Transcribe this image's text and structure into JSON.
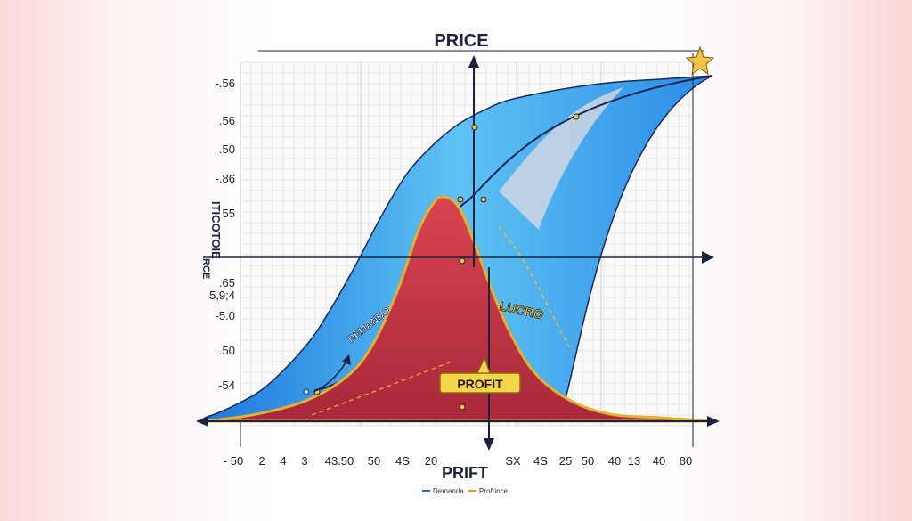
{
  "chart_data": {
    "type": "area",
    "title": "PRICE",
    "xlabel": "PRIFT",
    "ylabel_lines": [
      "RCE",
      "ITICOTOIE"
    ],
    "x_tick_labels": [
      "- 50",
      "2",
      "4",
      "3",
      "43.50",
      "50",
      "4S",
      "20",
      "SX",
      "4S",
      "25",
      "50",
      "40",
      "13",
      "40",
      "80"
    ],
    "y_tick_labels": [
      "-.56",
      ".56",
      ".50",
      "-.86",
      "55",
      ".65",
      "5,9;4",
      "-5.0",
      ".50",
      "-54"
    ],
    "x_range": [
      0,
      1
    ],
    "y_range": [
      0,
      1
    ],
    "grid": true,
    "legend_position": "bottom-center",
    "series": [
      {
        "name": "Demanda",
        "color": "#2b8be6",
        "x": [
          0.0,
          0.05,
          0.12,
          0.2,
          0.25,
          0.3,
          0.35,
          0.4,
          0.45,
          0.5,
          0.55,
          0.6,
          0.7,
          0.8,
          0.9,
          1.0
        ],
        "y": [
          0.01,
          0.04,
          0.1,
          0.22,
          0.33,
          0.46,
          0.6,
          0.72,
          0.8,
          0.86,
          0.9,
          0.93,
          0.96,
          0.98,
          0.99,
          1.0
        ]
      },
      {
        "name": "Profrince",
        "color": "#cf3c4a",
        "x": [
          0.0,
          0.1,
          0.2,
          0.28,
          0.33,
          0.38,
          0.42,
          0.45,
          0.47,
          0.5,
          0.53,
          0.56,
          0.6,
          0.65,
          0.72,
          0.8,
          0.9,
          1.0
        ],
        "y": [
          0.0,
          0.02,
          0.06,
          0.13,
          0.22,
          0.38,
          0.55,
          0.63,
          0.65,
          0.62,
          0.52,
          0.4,
          0.26,
          0.14,
          0.06,
          0.02,
          0.01,
          0.0
        ]
      }
    ],
    "annotations": [
      "DEMANDO",
      "LUCRO",
      "PROFIT"
    ],
    "legend": [
      {
        "label": "Demanda",
        "color": "#2b6cc4"
      },
      {
        "label": "Profrince",
        "color": "#d4a21c"
      }
    ]
  }
}
